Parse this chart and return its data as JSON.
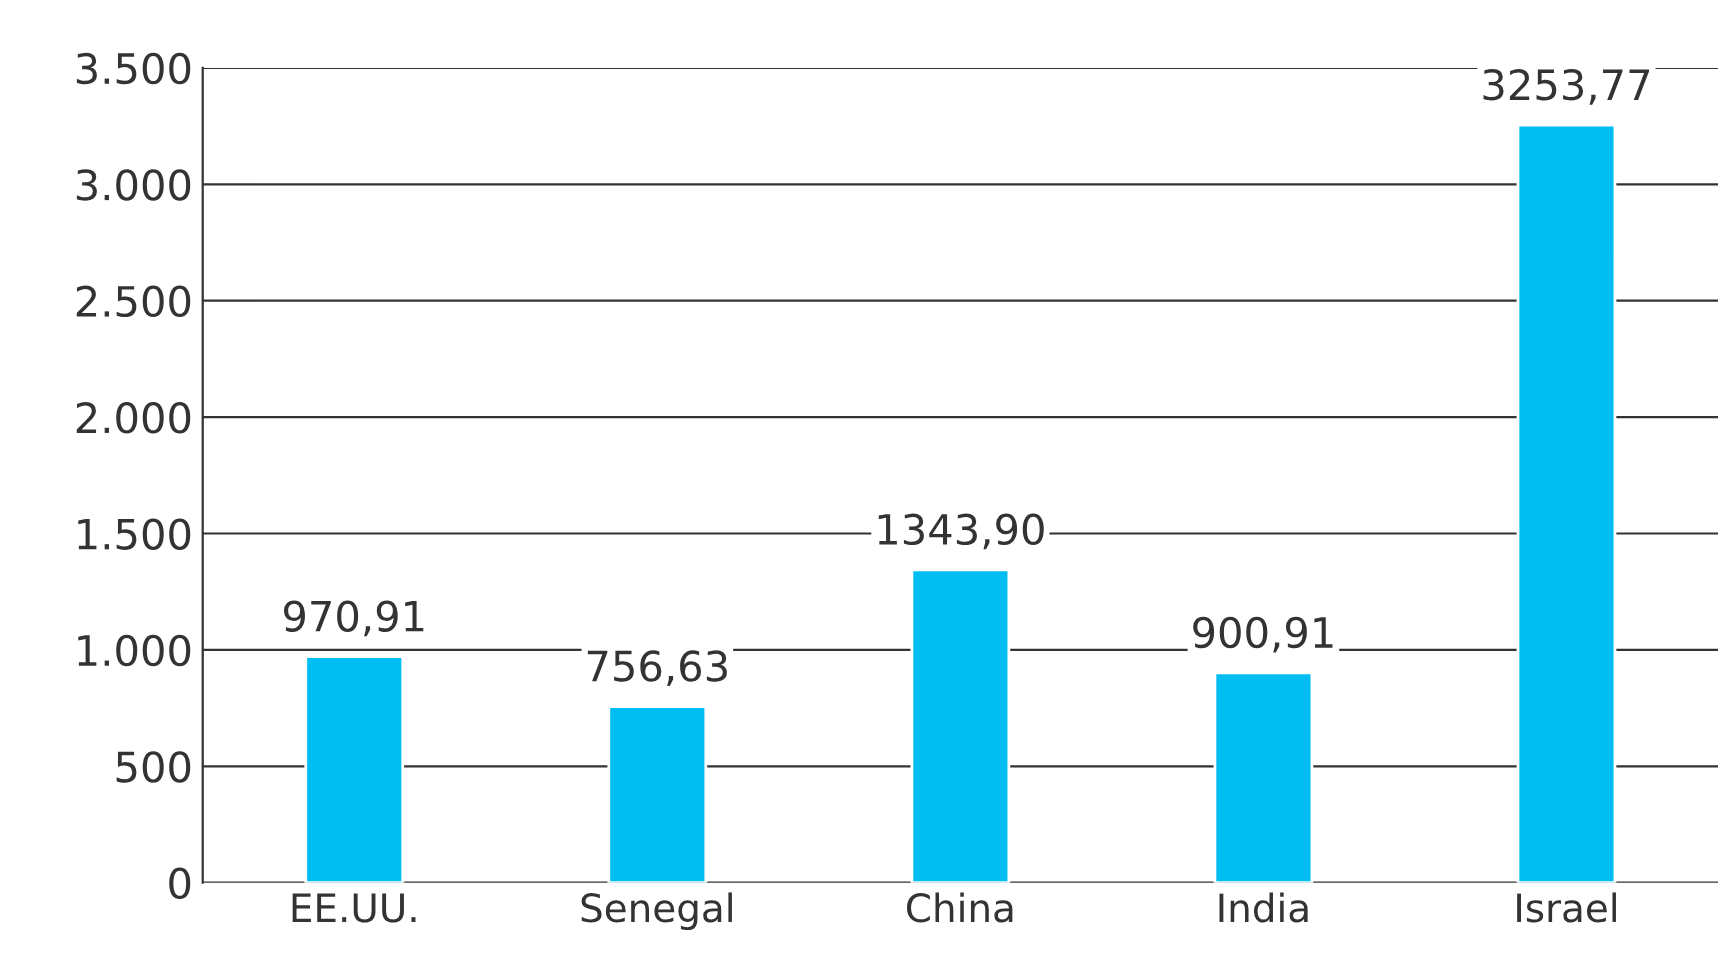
{
  "chart_data": {
    "type": "bar",
    "categories": [
      "EE.UU.",
      "Senegal",
      "China",
      "India",
      "Israel"
    ],
    "values": [
      970.91,
      756.63,
      1343.9,
      900.91,
      3253.77
    ],
    "value_labels": [
      "970,91",
      "756,63",
      "1343,90",
      "900,91",
      "3253,77"
    ],
    "color": "#00bdf2",
    "ylim": [
      0,
      3500
    ],
    "yticks": [
      0,
      500,
      {
        "value": 1000,
        "label": "1.000"
      },
      {
        "value": 1500,
        "label": "1.500"
      },
      {
        "value": 2000,
        "label": "2.000"
      },
      {
        "value": 2500,
        "label": "2.500"
      },
      {
        "value": 3000,
        "label": "3.000"
      },
      {
        "value": 3500,
        "label": "3.500"
      }
    ],
    "grid": "y",
    "legend": false
  }
}
